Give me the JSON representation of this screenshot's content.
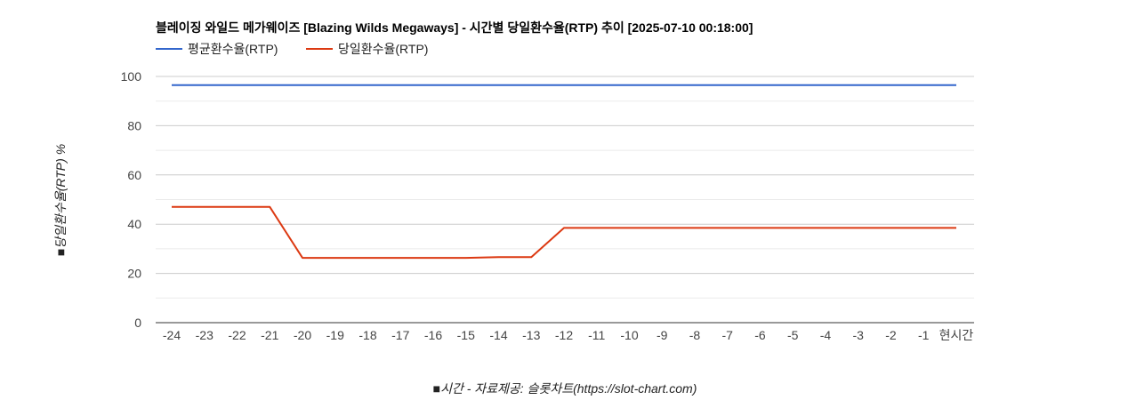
{
  "chart_data": {
    "type": "line",
    "title": "블레이징 와일드 메가웨이즈 [Blazing Wilds Megaways] - 시간별 당일환수율(RTP) 추이 [2025-07-10 00:18:00]",
    "xlabel": "■시간 - 자료제공: 슬롯차트(https://slot-chart.com)",
    "ylabel": "■당일환수율(RTP) %",
    "categories": [
      "-24",
      "-23",
      "-22",
      "-21",
      "-20",
      "-19",
      "-18",
      "-17",
      "-16",
      "-15",
      "-14",
      "-13",
      "-12",
      "-11",
      "-10",
      "-9",
      "-8",
      "-7",
      "-6",
      "-5",
      "-4",
      "-3",
      "-2",
      "-1",
      "현시간"
    ],
    "ylim": [
      0,
      100
    ],
    "yticks": [
      0,
      20,
      40,
      60,
      80,
      100
    ],
    "grid": true,
    "legend_position": "top-left",
    "series": [
      {
        "name": "평균환수율(RTP)",
        "color": "#3366cc",
        "values": [
          96.5,
          96.5,
          96.5,
          96.5,
          96.5,
          96.5,
          96.5,
          96.5,
          96.5,
          96.5,
          96.5,
          96.5,
          96.5,
          96.5,
          96.5,
          96.5,
          96.5,
          96.5,
          96.5,
          96.5,
          96.5,
          96.5,
          96.5,
          96.5,
          96.5
        ]
      },
      {
        "name": "당일환수율(RTP)",
        "color": "#dc3912",
        "values": [
          47,
          47,
          47,
          47,
          26.3,
          26.3,
          26.3,
          26.3,
          26.3,
          26.3,
          26.6,
          26.6,
          38.5,
          38.5,
          38.5,
          38.5,
          38.5,
          38.5,
          38.5,
          38.5,
          38.5,
          38.5,
          38.5,
          38.5,
          38.5
        ]
      }
    ]
  }
}
